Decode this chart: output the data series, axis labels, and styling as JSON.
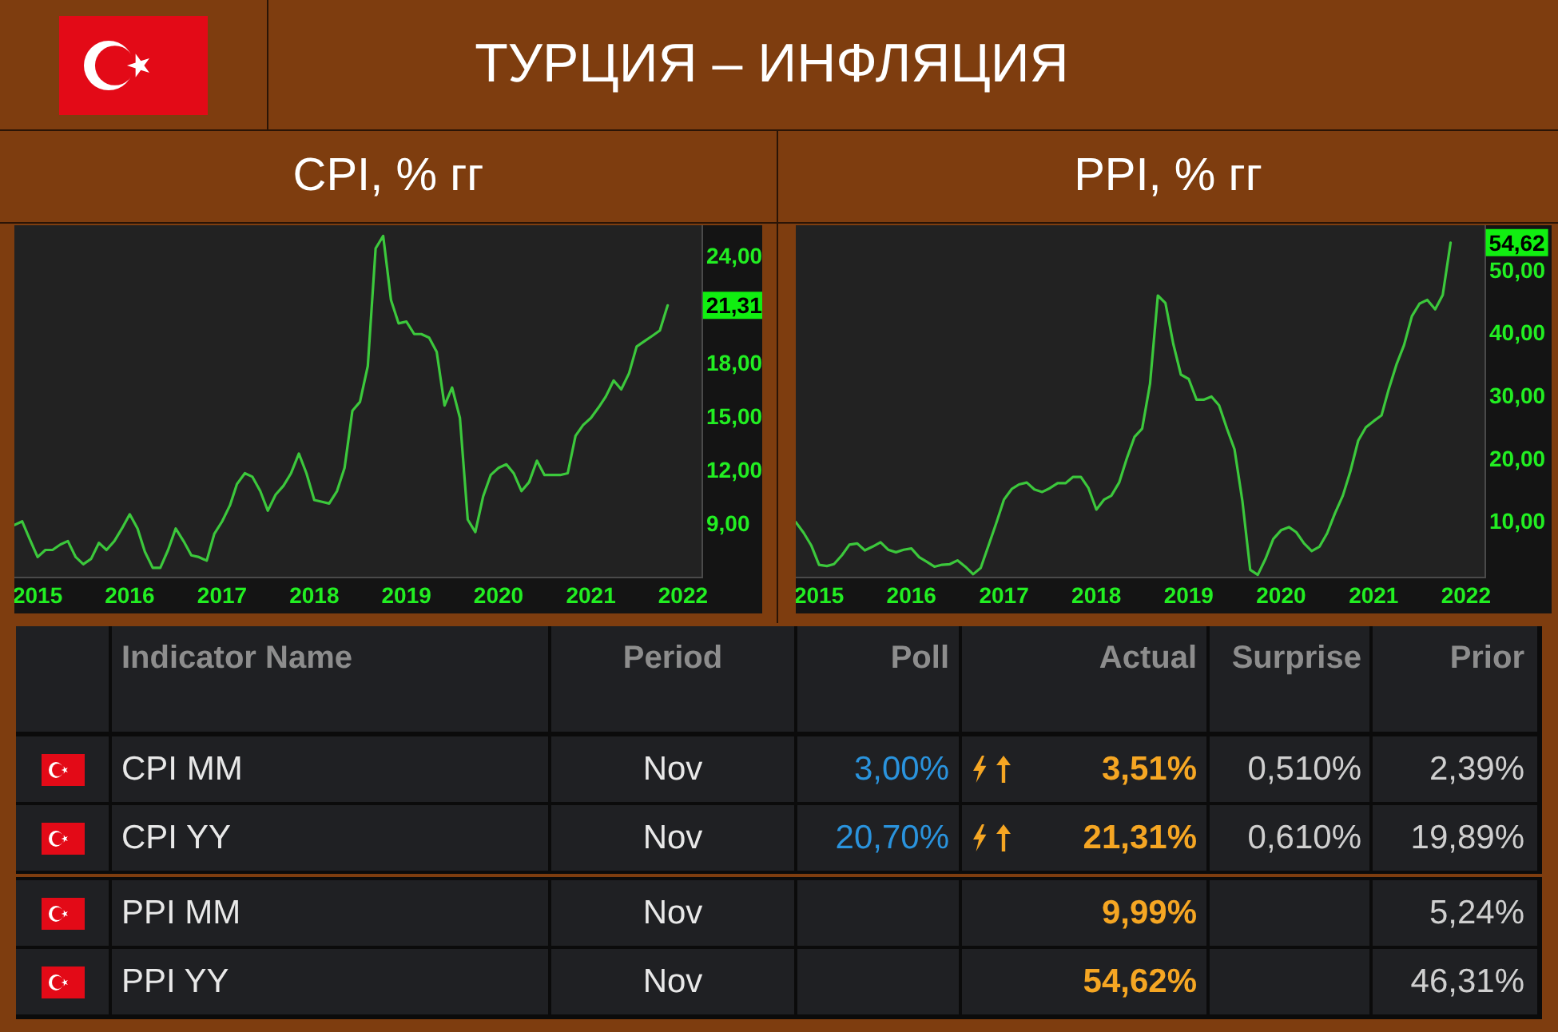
{
  "chart_data": [
    {
      "type": "other",
      "title": "ТУРЦИЯ – ИНФЛЯЦИЯ"
    },
    {
      "type": "line",
      "title": "CPI, % гг",
      "color": "#3cc83c",
      "x": [
        "2014-10",
        "2014-11",
        "2014-12",
        "2015-01",
        "2015-02",
        "2015-03",
        "2015-04",
        "2015-05",
        "2015-06",
        "2015-07",
        "2015-08",
        "2015-09",
        "2015-10",
        "2015-11",
        "2015-12",
        "2016-01",
        "2016-02",
        "2016-03",
        "2016-04",
        "2016-05",
        "2016-06",
        "2016-07",
        "2016-08",
        "2016-09",
        "2016-10",
        "2016-11",
        "2016-12",
        "2017-01",
        "2017-02",
        "2017-03",
        "2017-04",
        "2017-05",
        "2017-06",
        "2017-07",
        "2017-08",
        "2017-09",
        "2017-10",
        "2017-11",
        "2017-12",
        "2018-01",
        "2018-02",
        "2018-03",
        "2018-04",
        "2018-05",
        "2018-06",
        "2018-07",
        "2018-08",
        "2018-09",
        "2018-10",
        "2018-11",
        "2018-12",
        "2019-01",
        "2019-02",
        "2019-03",
        "2019-04",
        "2019-05",
        "2019-06",
        "2019-07",
        "2019-08",
        "2019-09",
        "2019-10",
        "2019-11",
        "2019-12",
        "2020-01",
        "2020-02",
        "2020-03",
        "2020-04",
        "2020-05",
        "2020-06",
        "2020-07",
        "2020-08",
        "2020-09",
        "2020-10",
        "2020-11",
        "2020-12",
        "2021-01",
        "2021-02",
        "2021-03",
        "2021-04",
        "2021-05",
        "2021-06",
        "2021-07",
        "2021-08",
        "2021-09",
        "2021-10",
        "2021-11"
      ],
      "values": [
        9.0,
        9.2,
        8.2,
        7.2,
        7.6,
        7.6,
        7.9,
        8.1,
        7.2,
        6.8,
        7.1,
        8.0,
        7.6,
        8.1,
        8.8,
        9.6,
        8.8,
        7.5,
        6.6,
        6.6,
        7.6,
        8.8,
        8.1,
        7.3,
        7.2,
        7.0,
        8.5,
        9.2,
        10.1,
        11.3,
        11.9,
        11.7,
        10.9,
        9.8,
        10.7,
        11.2,
        11.9,
        13.0,
        11.9,
        10.4,
        10.3,
        10.2,
        10.9,
        12.2,
        15.4,
        15.9,
        17.9,
        24.5,
        25.2,
        21.6,
        20.3,
        20.4,
        19.7,
        19.7,
        19.5,
        18.7,
        15.7,
        16.7,
        15.0,
        9.3,
        8.6,
        10.6,
        11.8,
        12.2,
        12.4,
        11.9,
        10.9,
        11.4,
        12.6,
        11.8,
        11.8,
        11.8,
        11.9,
        14.0,
        14.6,
        15.0,
        15.6,
        16.2,
        17.1,
        16.6,
        17.5,
        19.0,
        19.3,
        19.6,
        19.9,
        21.31
      ],
      "xlim": [
        "2014-10",
        "2022-03-15"
      ],
      "xticks": [
        "2015",
        "2016",
        "2017",
        "2018",
        "2019",
        "2020",
        "2021",
        "2022"
      ],
      "ylim": [
        6.1,
        25.8
      ],
      "yticks": [
        {
          "value": 9,
          "label": "9,00"
        },
        {
          "value": 12,
          "label": "12,00"
        },
        {
          "value": 15,
          "label": "15,00"
        },
        {
          "value": 18,
          "label": "18,00"
        },
        {
          "value": 24,
          "label": "24,00"
        }
      ],
      "annotations": [
        {
          "text": "21,31",
          "x": "2021-11",
          "y": 21.31
        }
      ]
    },
    {
      "type": "line",
      "title": "PPI, % гг",
      "color": "#3cc83c",
      "x": [
        "2014-10",
        "2014-11",
        "2014-12",
        "2015-01",
        "2015-02",
        "2015-03",
        "2015-04",
        "2015-05",
        "2015-06",
        "2015-07",
        "2015-08",
        "2015-09",
        "2015-10",
        "2015-11",
        "2015-12",
        "2016-01",
        "2016-02",
        "2016-03",
        "2016-04",
        "2016-05",
        "2016-06",
        "2016-07",
        "2016-08",
        "2016-09",
        "2016-10",
        "2016-11",
        "2016-12",
        "2017-01",
        "2017-02",
        "2017-03",
        "2017-04",
        "2017-05",
        "2017-06",
        "2017-07",
        "2017-08",
        "2017-09",
        "2017-10",
        "2017-11",
        "2017-12",
        "2018-01",
        "2018-02",
        "2018-03",
        "2018-04",
        "2018-05",
        "2018-06",
        "2018-07",
        "2018-08",
        "2018-09",
        "2018-10",
        "2018-11",
        "2018-12",
        "2019-01",
        "2019-02",
        "2019-03",
        "2019-04",
        "2019-05",
        "2019-06",
        "2019-07",
        "2019-08",
        "2019-09",
        "2019-10",
        "2019-11",
        "2019-12",
        "2020-01",
        "2020-02",
        "2020-03",
        "2020-04",
        "2020-05",
        "2020-06",
        "2020-07",
        "2020-08",
        "2020-09",
        "2020-10",
        "2020-11",
        "2020-12",
        "2021-01",
        "2021-02",
        "2021-03",
        "2021-04",
        "2021-05",
        "2021-06",
        "2021-07",
        "2021-08",
        "2021-09",
        "2021-10",
        "2021-11"
      ],
      "values": [
        10.1,
        8.4,
        6.4,
        3.3,
        3.1,
        3.4,
        4.8,
        6.5,
        6.7,
        5.6,
        6.2,
        6.9,
        5.7,
        5.3,
        5.7,
        5.9,
        4.5,
        3.8,
        3.0,
        3.3,
        3.4,
        4.0,
        3.0,
        1.8,
        2.8,
        6.4,
        9.9,
        13.7,
        15.4,
        16.1,
        16.4,
        15.3,
        14.9,
        15.5,
        16.3,
        16.3,
        17.3,
        17.3,
        15.5,
        12.1,
        13.7,
        14.3,
        16.4,
        20.2,
        23.7,
        25.0,
        32.1,
        46.2,
        45.0,
        38.5,
        33.6,
        32.9,
        29.6,
        29.6,
        30.1,
        28.7,
        25.0,
        21.7,
        13.5,
        2.5,
        1.7,
        4.3,
        7.4,
        8.8,
        9.3,
        8.5,
        6.7,
        5.5,
        6.2,
        8.3,
        11.5,
        14.3,
        18.2,
        23.1,
        25.2,
        26.2,
        27.1,
        31.2,
        35.2,
        38.3,
        42.9,
        44.9,
        45.5,
        44.0,
        46.3,
        54.62
      ],
      "xlim": [
        "2014-10",
        "2022-03-15"
      ],
      "xticks": [
        "2015",
        "2016",
        "2017",
        "2018",
        "2019",
        "2020",
        "2021",
        "2022"
      ],
      "ylim": [
        1.4,
        57.4
      ],
      "yticks": [
        {
          "value": 10,
          "label": "10,00"
        },
        {
          "value": 20,
          "label": "20,00"
        },
        {
          "value": 30,
          "label": "30,00"
        },
        {
          "value": 40,
          "label": "40,00"
        },
        {
          "value": 50,
          "label": "50,00"
        }
      ],
      "annotations": [
        {
          "text": "54,62",
          "x": "2021-11",
          "y": 54.62
        }
      ]
    },
    {
      "type": "other",
      "categories": [
        "Indicator Name",
        "Period",
        "Poll",
        "Actual",
        "Surprise",
        "Prior"
      ],
      "cell_labels": [
        [
          "CPI MM",
          "Nov",
          "3,00%",
          "3,51%",
          "0,510%",
          "2,39%"
        ],
        [
          "CPI YY",
          "Nov",
          "20,70%",
          "21,31%",
          "0,610%",
          "19,89%"
        ],
        [
          "PPI MM",
          "Nov",
          null,
          "9,99%",
          null,
          "5,24%"
        ],
        [
          "PPI YY",
          "Nov",
          null,
          "54,62%",
          null,
          "46,31%"
        ]
      ]
    }
  ]
}
